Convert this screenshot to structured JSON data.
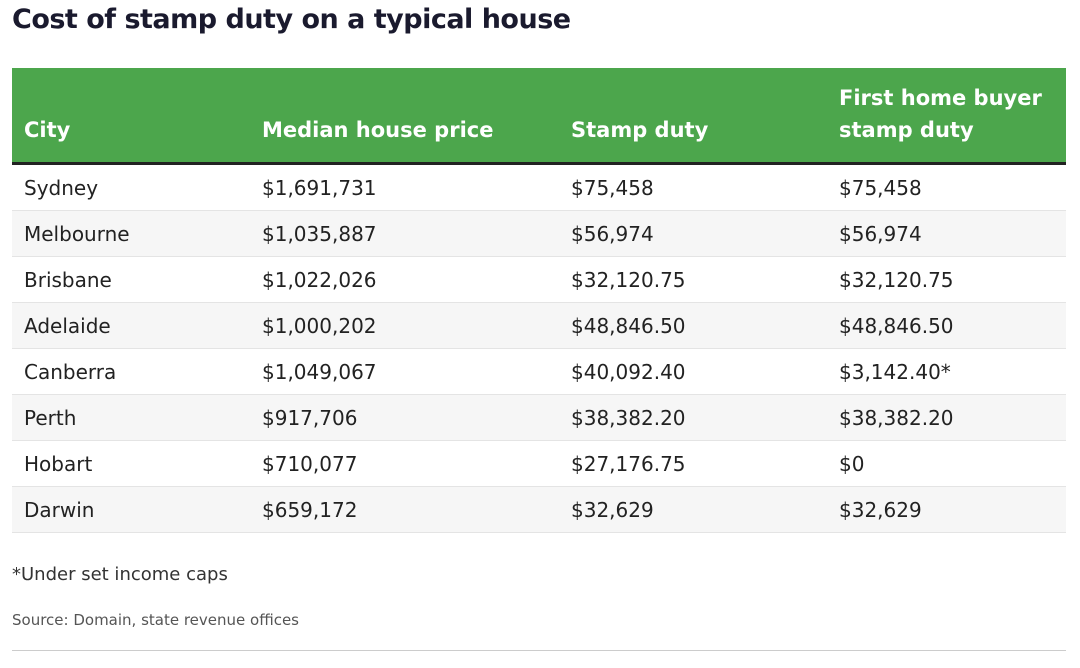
{
  "title": "Cost of stamp duty on a typical house",
  "table": {
    "header": [
      "City",
      "Median house price",
      "Stamp duty",
      "First home buyer stamp duty"
    ],
    "rows": [
      [
        "Sydney",
        "$1,691,731",
        "$75,458",
        "$75,458"
      ],
      [
        "Melbourne",
        "$1,035,887",
        "$56,974",
        "$56,974"
      ],
      [
        "Brisbane",
        "$1,022,026",
        "$32,120.75",
        "$32,120.75"
      ],
      [
        "Adelaide",
        "$1,000,202",
        "$48,846.50",
        "$48,846.50"
      ],
      [
        "Canberra",
        "$1,049,067",
        "$40,092.40",
        "$3,142.40*"
      ],
      [
        "Perth",
        "$917,706",
        "$38,382.20",
        "$38,382.20"
      ],
      [
        "Hobart",
        "$710,077",
        "$27,176.75",
        "$0"
      ],
      [
        "Darwin",
        "$659,172",
        "$32,629",
        "$32,629"
      ]
    ]
  },
  "footnote": "*Under set income caps",
  "source": "Source: Domain, state revenue offices"
}
